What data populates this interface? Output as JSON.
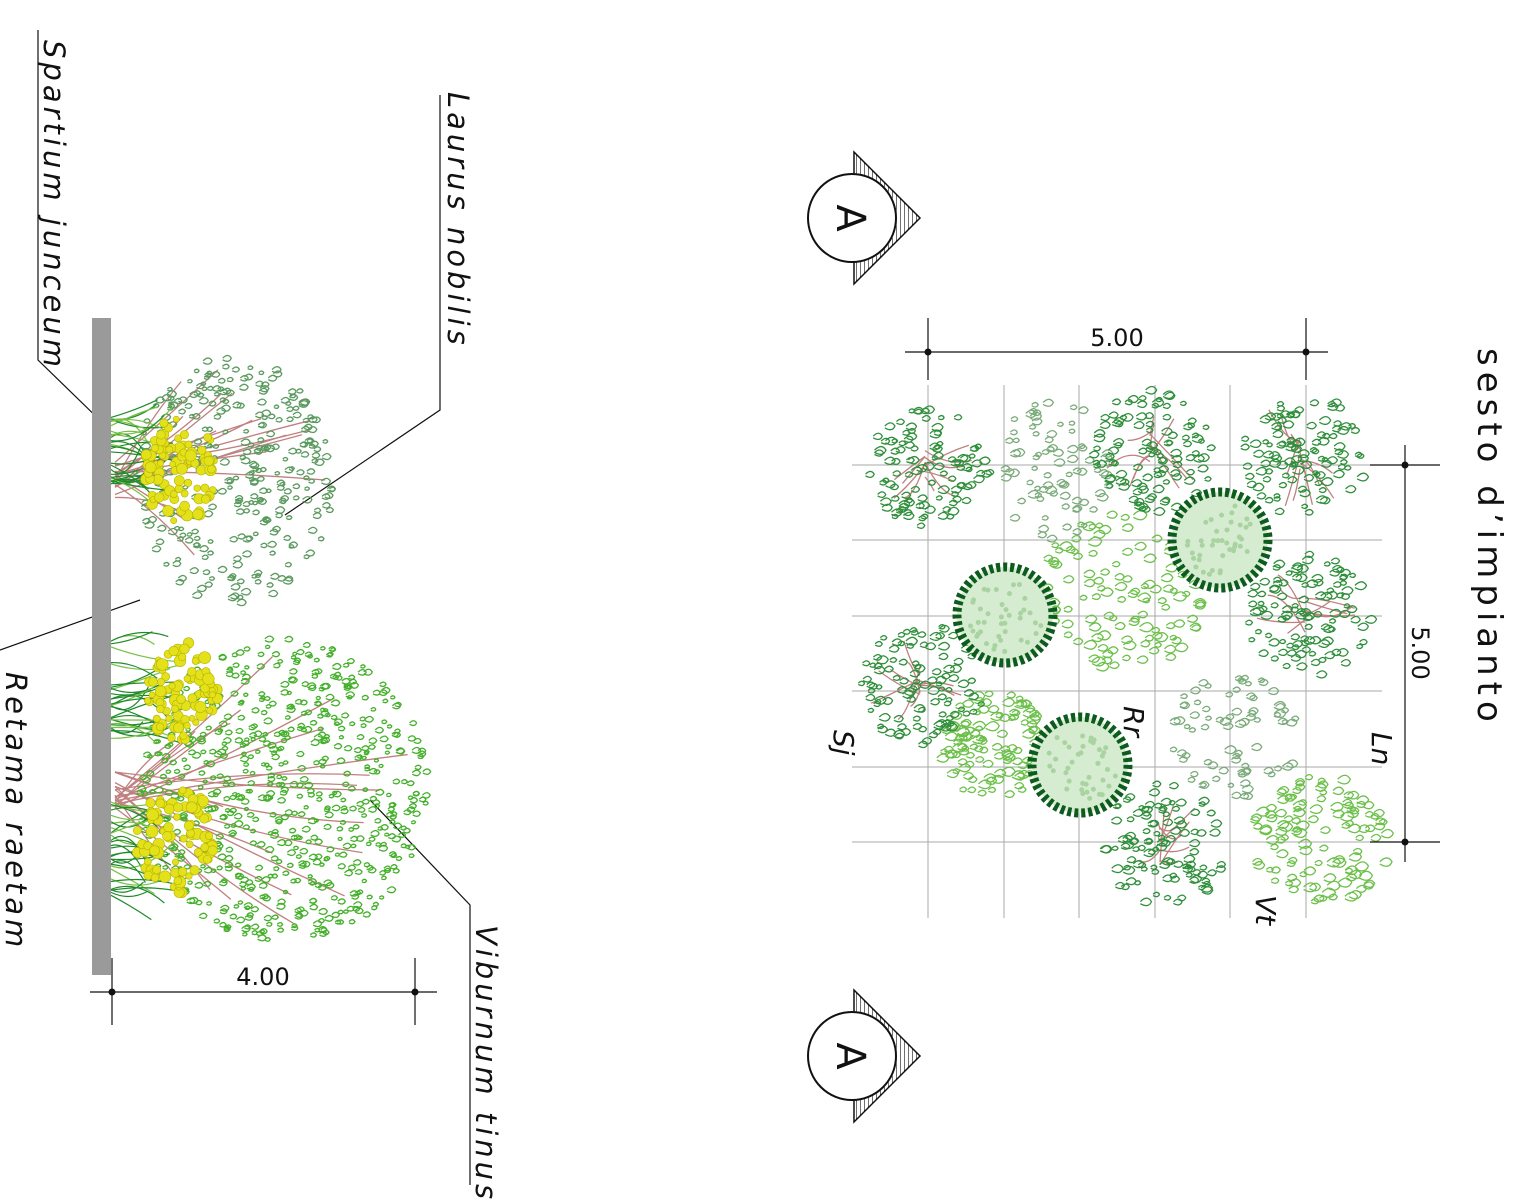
{
  "title": "sesto d’impianto",
  "section": {
    "labels": {
      "spartium": "Spartium junceum",
      "laurus": "Laurus nobilis",
      "retama": "Retama raetam",
      "viburnum": "Viburnum tinus"
    },
    "dimension": "4.00"
  },
  "plan": {
    "dim_top": "5.00",
    "dim_right": "5.00",
    "codes": {
      "ln": "Ln",
      "rr": "Rr",
      "sj": "Sj",
      "vt": "Vt"
    }
  },
  "section_marker": "A",
  "colors": {
    "laurus": "#2f8f3a",
    "laurus_light": "#5a9a5e",
    "viburnum": "#44b02a",
    "retama_dark": "#0d5c1e",
    "retama_light": "#d6ecd0",
    "spartium_flower": "#e3e11a",
    "ground": "#9a9a9a",
    "branch": "#c08080"
  }
}
